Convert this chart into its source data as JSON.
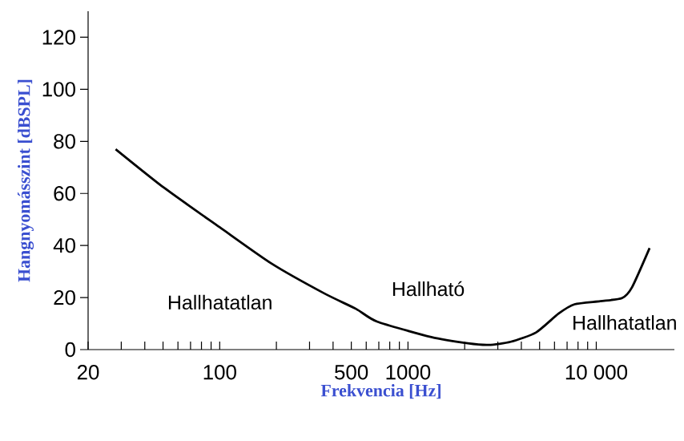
{
  "chart_data": {
    "type": "line",
    "xlabel": "Frekvencia [Hz]",
    "ylabel": "Hangnyomásszint [dBSPL]",
    "log": "x",
    "xlim": [
      20,
      26000
    ],
    "ylim": [
      0,
      130
    ],
    "xticks": [
      20,
      {
        "value": 30,
        "label": null
      },
      {
        "value": 40,
        "label": null
      },
      {
        "value": 50,
        "label": null
      },
      {
        "value": 60,
        "label": null
      },
      {
        "value": 70,
        "label": null
      },
      {
        "value": 80,
        "label": null
      },
      {
        "value": 90,
        "label": null
      },
      100,
      {
        "value": 200,
        "label": null
      },
      {
        "value": 300,
        "label": null
      },
      {
        "value": 400,
        "label": null
      },
      500,
      {
        "value": 600,
        "label": null
      },
      {
        "value": 700,
        "label": null
      },
      {
        "value": 800,
        "label": null
      },
      {
        "value": 900,
        "label": null
      },
      1000,
      {
        "value": 2000,
        "label": null
      },
      {
        "value": 3000,
        "label": null
      },
      {
        "value": 4000,
        "label": null
      },
      {
        "value": 5000,
        "label": null
      },
      {
        "value": 6000,
        "label": null
      },
      {
        "value": 7000,
        "label": null
      },
      {
        "value": 8000,
        "label": null
      },
      {
        "value": 9000,
        "label": null
      },
      {
        "value": 10000,
        "label": "10 000"
      }
    ],
    "yticks": [
      0,
      20,
      40,
      60,
      80,
      100,
      120
    ],
    "series": [
      {
        "color": "#000000",
        "x": [
          28,
          51,
          100,
          189,
          359,
          531,
          684,
          1330,
          2080,
          2680,
          3510,
          4790,
          6300,
          7670,
          10500,
          13700,
          15500,
          19200
        ],
        "values": [
          77,
          62,
          47,
          33,
          21.6,
          15.6,
          10.8,
          4.8,
          2.4,
          1.8,
          3,
          6.6,
          13.8,
          17.4,
          18.6,
          19.8,
          24,
          39
        ]
      }
    ],
    "annotations": [
      "Hallhatatlan",
      "Hallható",
      "Hallhatatlan"
    ]
  }
}
